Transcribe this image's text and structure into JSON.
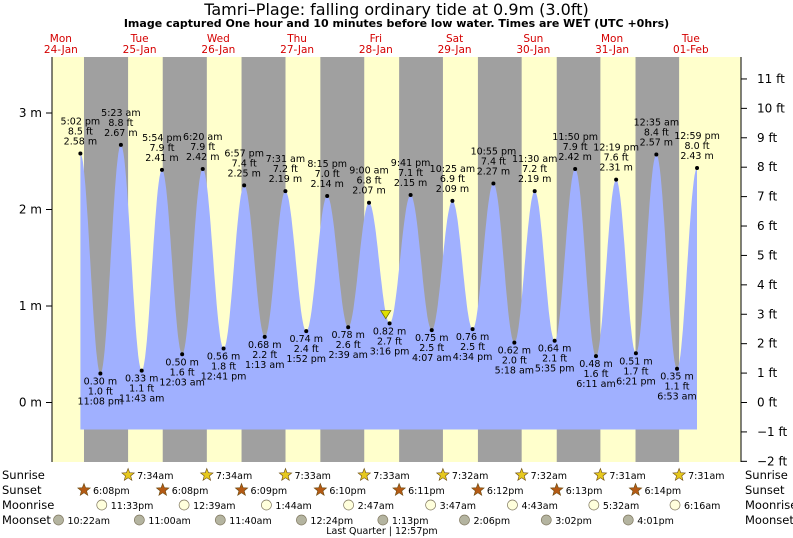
{
  "title": "Tamri–Plage: falling  ordinary tide at 0.9m (3.0ft)",
  "subtitle": "Image captured One hour and 10 minutes before low water. Times are WET (UTC +0hrs)",
  "days": [
    {
      "dow": "Mon",
      "date": "24-Jan"
    },
    {
      "dow": "Tue",
      "date": "25-Jan"
    },
    {
      "dow": "Wed",
      "date": "26-Jan"
    },
    {
      "dow": "Thu",
      "date": "27-Jan"
    },
    {
      "dow": "Fri",
      "date": "28-Jan"
    },
    {
      "dow": "Sat",
      "date": "29-Jan"
    },
    {
      "dow": "Sun",
      "date": "30-Jan"
    },
    {
      "dow": "Mon",
      "date": "31-Jan"
    },
    {
      "dow": "Tue",
      "date": "01-Feb"
    }
  ],
  "colors": {
    "day": "#ffffcc",
    "night": "#a0a0a0",
    "water": "#a0b0ff",
    "current": "#e0e000",
    "sun": "#e6c81e",
    "sunset": "#b45a14",
    "moonrise": "#ffffdc",
    "moonset": "#b4b4a0"
  },
  "chart_data": {
    "type": "area",
    "x_unit": "hours from 2022-01-24 00:00",
    "left_axis": {
      "unit": "m",
      "ticks": [
        0,
        1,
        2,
        3
      ],
      "labels": [
        "0 m",
        "1 m",
        "2 m",
        "3 m"
      ]
    },
    "right_axis": {
      "unit": "ft",
      "ticks": [
        -2,
        -1,
        0,
        1,
        2,
        3,
        4,
        5,
        6,
        7,
        8,
        9,
        10,
        11
      ],
      "labels": [
        "−2 ft",
        "−1 ft",
        "0 ft",
        "1 ft",
        "2 ft",
        "3 ft",
        "4 ft",
        "5 ft",
        "6 ft",
        "7 ft",
        "8 ft",
        "9 ft",
        "10 ft",
        "11 ft"
      ]
    },
    "extremes": [
      {
        "kind": "high",
        "hours": 17.03,
        "m": 2.58,
        "time": "5:02 pm",
        "ft": "8.5 ft",
        "mt": "2.58 m"
      },
      {
        "kind": "low",
        "hours": 23.13,
        "m": 0.3,
        "time": "11:08 pm",
        "ft": "1.0 ft",
        "mt": "0.30 m"
      },
      {
        "kind": "high",
        "hours": 29.38,
        "m": 2.67,
        "time": "5:23 am",
        "ft": "8.8 ft",
        "mt": "2.67 m"
      },
      {
        "kind": "low",
        "hours": 35.72,
        "m": 0.33,
        "time": "11:43 am",
        "ft": "1.1 ft",
        "mt": "0.33 m"
      },
      {
        "kind": "high",
        "hours": 41.9,
        "m": 2.41,
        "time": "5:54 pm",
        "ft": "7.9 ft",
        "mt": "2.41 m"
      },
      {
        "kind": "low",
        "hours": 48.05,
        "m": 0.5,
        "time": "12:03 am",
        "ft": "1.6 ft",
        "mt": "0.50 m"
      },
      {
        "kind": "high",
        "hours": 54.33,
        "m": 2.42,
        "time": "6:20 am",
        "ft": "7.9 ft",
        "mt": "2.42 m"
      },
      {
        "kind": "low",
        "hours": 60.68,
        "m": 0.56,
        "time": "12:41 pm",
        "ft": "1.8 ft",
        "mt": "0.56 m"
      },
      {
        "kind": "high",
        "hours": 66.95,
        "m": 2.25,
        "time": "6:57 pm",
        "ft": "7.4 ft",
        "mt": "2.25 m"
      },
      {
        "kind": "low",
        "hours": 73.22,
        "m": 0.68,
        "time": "1:13 am",
        "ft": "2.2 ft",
        "mt": "0.68 m"
      },
      {
        "kind": "high",
        "hours": 79.52,
        "m": 2.19,
        "time": "7:31 am",
        "ft": "7.2 ft",
        "mt": "2.19 m"
      },
      {
        "kind": "low",
        "hours": 85.87,
        "m": 0.74,
        "time": "1:52 pm",
        "ft": "2.4 ft",
        "mt": "0.74 m"
      },
      {
        "kind": "high",
        "hours": 92.25,
        "m": 2.14,
        "time": "8:15 pm",
        "ft": "7.0 ft",
        "mt": "2.14 m"
      },
      {
        "kind": "low",
        "hours": 98.65,
        "m": 0.78,
        "time": "2:39 am",
        "ft": "2.6 ft",
        "mt": "0.78 m"
      },
      {
        "kind": "high",
        "hours": 105.0,
        "m": 2.07,
        "time": "9:00 am",
        "ft": "6.8 ft",
        "mt": "2.07 m"
      },
      {
        "kind": "low",
        "hours": 111.27,
        "m": 0.82,
        "time": "3:16 pm",
        "ft": "2.7 ft",
        "mt": "0.82 m"
      },
      {
        "kind": "high",
        "hours": 117.68,
        "m": 2.15,
        "time": "9:41 pm",
        "ft": "7.1 ft",
        "mt": "2.15 m"
      },
      {
        "kind": "low",
        "hours": 124.12,
        "m": 0.75,
        "time": "4:07 am",
        "ft": "2.5 ft",
        "mt": "0.75 m"
      },
      {
        "kind": "high",
        "hours": 130.42,
        "m": 2.09,
        "time": "10:25 am",
        "ft": "6.9 ft",
        "mt": "2.09 m"
      },
      {
        "kind": "low",
        "hours": 136.57,
        "m": 0.76,
        "time": "4:34 pm",
        "ft": "2.5 ft",
        "mt": "0.76 m"
      },
      {
        "kind": "high",
        "hours": 142.92,
        "m": 2.27,
        "time": "10:55 pm",
        "ft": "7.4 ft",
        "mt": "2.27 m"
      },
      {
        "kind": "low",
        "hours": 149.3,
        "m": 0.62,
        "time": "5:18 am",
        "ft": "2.0 ft",
        "mt": "0.62 m"
      },
      {
        "kind": "high",
        "hours": 155.5,
        "m": 2.19,
        "time": "11:30 am",
        "ft": "7.2 ft",
        "mt": "2.19 m"
      },
      {
        "kind": "low",
        "hours": 161.58,
        "m": 0.64,
        "time": "5:35 pm",
        "ft": "2.1 ft",
        "mt": "0.64 m"
      },
      {
        "kind": "high",
        "hours": 167.83,
        "m": 2.42,
        "time": "11:50 pm",
        "ft": "7.9 ft",
        "mt": "2.42 m"
      },
      {
        "kind": "low",
        "hours": 174.18,
        "m": 0.48,
        "time": "6:11 am",
        "ft": "1.6 ft",
        "mt": "0.48 m"
      },
      {
        "kind": "high",
        "hours": 180.32,
        "m": 2.31,
        "time": "12:19 pm",
        "ft": "7.6 ft",
        "mt": "2.31 m"
      },
      {
        "kind": "low",
        "hours": 186.35,
        "m": 0.51,
        "time": "6:21 pm",
        "ft": "1.7 ft",
        "mt": "0.51 m"
      },
      {
        "kind": "high",
        "hours": 192.58,
        "m": 2.57,
        "time": "12:35 am",
        "ft": "8.4 ft",
        "mt": "2.57 m"
      },
      {
        "kind": "low",
        "hours": 198.88,
        "m": 0.35,
        "time": "6:53 am",
        "ft": "1.1 ft",
        "mt": "0.35 m"
      },
      {
        "kind": "high",
        "hours": 204.98,
        "m": 2.43,
        "time": "12:59 pm",
        "ft": "8.0 ft",
        "mt": "2.43 m"
      }
    ],
    "current": {
      "hours": 110.1,
      "m": 0.9
    }
  },
  "rows": {
    "sunrise": {
      "label": "Sunrise",
      "events": [
        {
          "hours": 31.57,
          "text": "7:34am"
        },
        {
          "hours": 55.57,
          "text": "7:34am"
        },
        {
          "hours": 79.55,
          "text": "7:33am"
        },
        {
          "hours": 103.55,
          "text": "7:33am"
        },
        {
          "hours": 127.53,
          "text": "7:32am"
        },
        {
          "hours": 151.53,
          "text": "7:32am"
        },
        {
          "hours": 175.52,
          "text": "7:31am"
        },
        {
          "hours": 199.52,
          "text": "7:31am"
        }
      ]
    },
    "sunset": {
      "label": "Sunset",
      "events": [
        {
          "hours": 18.13,
          "text": "6:08pm"
        },
        {
          "hours": 42.13,
          "text": "6:08pm"
        },
        {
          "hours": 66.15,
          "text": "6:09pm"
        },
        {
          "hours": 90.17,
          "text": "6:10pm"
        },
        {
          "hours": 114.18,
          "text": "6:11pm"
        },
        {
          "hours": 138.2,
          "text": "6:12pm"
        },
        {
          "hours": 162.22,
          "text": "6:13pm"
        },
        {
          "hours": 186.23,
          "text": "6:14pm"
        }
      ]
    },
    "moonrise": {
      "label": "Moonrise",
      "events": [
        {
          "hours": 23.55,
          "text": "11:33pm"
        },
        {
          "hours": 48.65,
          "text": "12:39am"
        },
        {
          "hours": 73.73,
          "text": "1:44am"
        },
        {
          "hours": 98.78,
          "text": "2:47am"
        },
        {
          "hours": 123.78,
          "text": "3:47am"
        },
        {
          "hours": 148.72,
          "text": "4:43am"
        },
        {
          "hours": 173.53,
          "text": "5:32am"
        },
        {
          "hours": 198.27,
          "text": "6:16am"
        }
      ]
    },
    "moonset": {
      "label": "Moonset",
      "events": [
        {
          "hours": 10.37,
          "text": "10:22am"
        },
        {
          "hours": 35.0,
          "text": "11:00am"
        },
        {
          "hours": 59.67,
          "text": "11:40am"
        },
        {
          "hours": 84.4,
          "text": "12:24pm"
        },
        {
          "hours": 109.22,
          "text": "1:13pm"
        },
        {
          "hours": 134.1,
          "text": "2:06pm"
        },
        {
          "hours": 159.03,
          "text": "3:02pm"
        },
        {
          "hours": 184.02,
          "text": "4:01pm"
        }
      ]
    },
    "moon_phase": {
      "text": "Last Quarter | 12:57pm",
      "hours": 108.95
    }
  }
}
